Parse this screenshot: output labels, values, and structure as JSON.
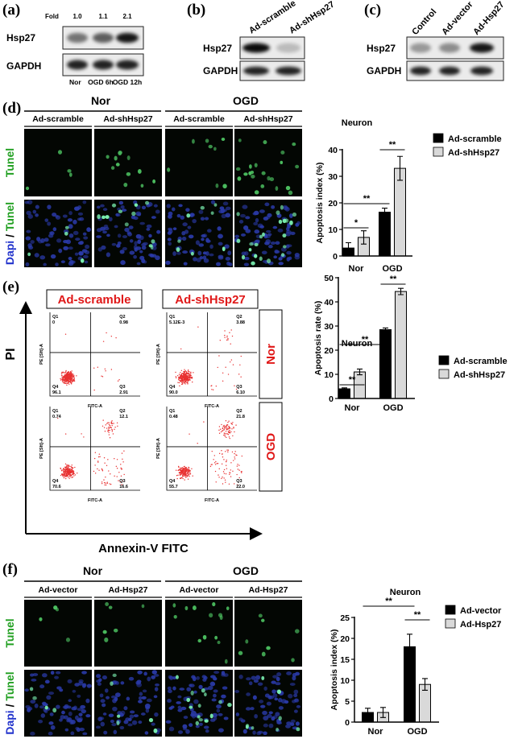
{
  "panel_labels": [
    "(a)",
    "(b)",
    "(c)",
    "(d)",
    "(e)",
    "(f)"
  ],
  "blot_a": {
    "fold_label": "Fold",
    "folds": [
      "1.0",
      "1.1",
      "2.1"
    ],
    "rows": [
      "Hsp27",
      "GAPDH"
    ],
    "lanes": [
      "Nor",
      "OGD 6h",
      "OGD 12h"
    ]
  },
  "blot_b": {
    "lanes": [
      "Ad-scramble",
      "Ad-shHsp27"
    ],
    "rows": [
      "Hsp27",
      "GAPDH"
    ]
  },
  "blot_c": {
    "lanes": [
      "Control",
      "Ad-vector",
      "Ad-Hsp27"
    ],
    "rows": [
      "Hsp27",
      "GAPDH"
    ]
  },
  "imaging_d": {
    "groups": [
      "Nor",
      "OGD"
    ],
    "columns": [
      "Ad-scramble",
      "Ad-shHsp27",
      "Ad-scramble",
      "Ad-shHsp27"
    ],
    "rows": [
      [
        "Tunel"
      ],
      [
        "Dapi",
        "/",
        "Tunel"
      ]
    ]
  },
  "flow_e": {
    "columns": [
      "Ad-scramble",
      "Ad-shHsp27"
    ],
    "rows": [
      "Nor",
      "OGD"
    ],
    "y_axis": "PI",
    "x_axis": "Annexin-V FITC",
    "plot_x_label": "FITC-A",
    "plot_y_label": "PE [Sft]-A",
    "plots": [
      {
        "quadrants": [
          [
            "Q1",
            "0"
          ],
          [
            "Q2",
            "0.98"
          ],
          [
            "Q3",
            "2.91"
          ],
          [
            "Q4",
            "96.1"
          ]
        ]
      },
      {
        "quadrants": [
          [
            "Q1",
            "5.12E-3"
          ],
          [
            "Q2",
            "3.88"
          ],
          [
            "Q3",
            "6.10"
          ],
          [
            "Q4",
            "90.0"
          ]
        ]
      },
      {
        "quadrants": [
          [
            "Q1",
            "0.74"
          ],
          [
            "Q2",
            "12.1"
          ],
          [
            "Q3",
            "16.6"
          ],
          [
            "Q4",
            "70.6"
          ]
        ]
      },
      {
        "quadrants": [
          [
            "Q1",
            "0.48"
          ],
          [
            "Q2",
            "21.8"
          ],
          [
            "Q3",
            "22.0"
          ],
          [
            "Q4",
            "55.7"
          ]
        ]
      }
    ]
  },
  "imaging_f": {
    "groups": [
      "Nor",
      "OGD"
    ],
    "columns": [
      "Ad-vector",
      "Ad-Hsp27",
      "Ad-vector",
      "Ad-Hsp27"
    ],
    "rows": [
      [
        "Tunel"
      ],
      [
        "Dapi",
        "/",
        "Tunel"
      ]
    ]
  },
  "chart_data": [
    {
      "type": "bar",
      "title": "Neuron",
      "ylabel": "Apoptosis index (%)",
      "categories": [
        "Nor",
        "OGD"
      ],
      "series": [
        {
          "name": "Ad-scramble",
          "color": "#000000",
          "values": [
            3,
            16.5
          ],
          "errors": [
            2,
            1.5
          ]
        },
        {
          "name": "Ad-shHsp27",
          "color": "#d9d9d9",
          "values": [
            7,
            33
          ],
          "errors": [
            2.5,
            4.5
          ]
        }
      ],
      "ylim": [
        0,
        40
      ],
      "yticks": [
        0,
        10,
        20,
        30,
        40
      ],
      "annotations": [
        "*",
        "**",
        "**"
      ]
    },
    {
      "type": "bar",
      "title": "Neuron",
      "ylabel": "Apoptosis rate (%)",
      "categories": [
        "Nor",
        "OGD"
      ],
      "series": [
        {
          "name": "Ad-scramble",
          "color": "#000000",
          "values": [
            4,
            28.5
          ],
          "errors": [
            0.4,
            0.7
          ]
        },
        {
          "name": "Ad-shHsp27",
          "color": "#d9d9d9",
          "values": [
            11,
            44.3
          ],
          "errors": [
            1.2,
            1.3
          ]
        }
      ],
      "ylim": [
        0,
        50
      ],
      "yticks": [
        0,
        10,
        20,
        30,
        40,
        50
      ],
      "annotations": [
        "**",
        "**",
        "**"
      ]
    },
    {
      "type": "bar",
      "title": "Neuron",
      "ylabel": "Apoptosis index (%)",
      "categories": [
        "Nor",
        "OGD"
      ],
      "series": [
        {
          "name": "Ad-vector",
          "color": "#000000",
          "values": [
            2.3,
            18
          ],
          "errors": [
            1,
            3
          ]
        },
        {
          "name": "Ad-Hsp27",
          "color": "#d9d9d9",
          "values": [
            2.3,
            9
          ],
          "errors": [
            1.2,
            1.4
          ]
        }
      ],
      "ylim": [
        0,
        25
      ],
      "yticks": [
        0,
        5,
        10,
        15,
        20,
        25
      ],
      "annotations": [
        "**",
        "**"
      ]
    }
  ]
}
